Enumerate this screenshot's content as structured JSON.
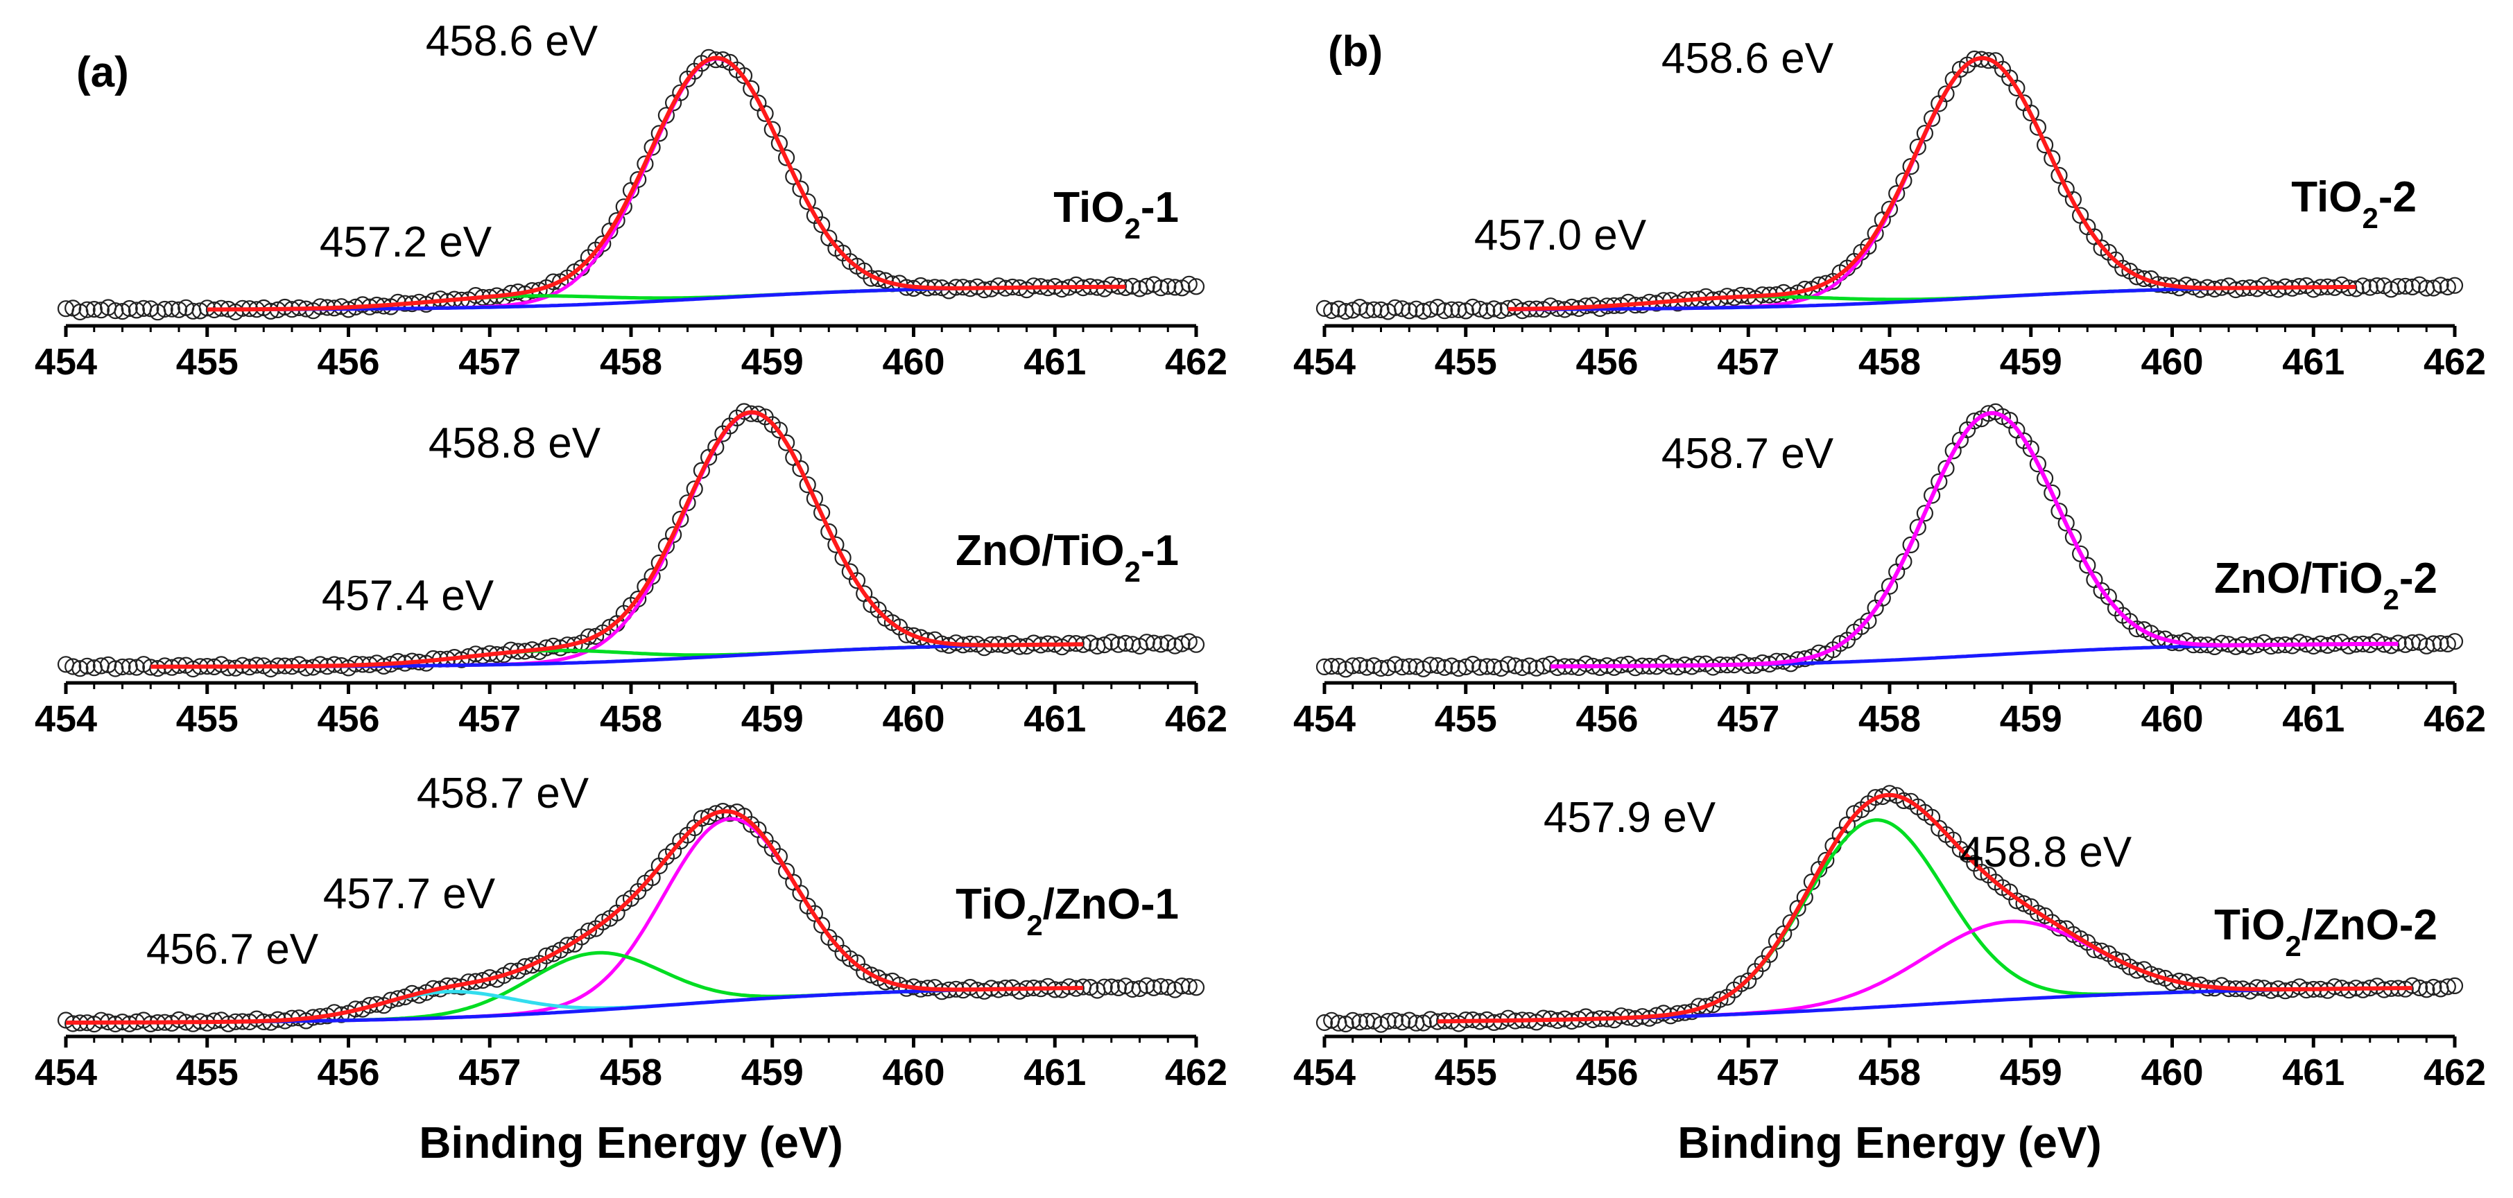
{
  "panels": [
    {
      "id": "a",
      "label": "(a)"
    },
    {
      "id": "b",
      "label": "(b)"
    }
  ],
  "chart_data": [
    {
      "type": "line",
      "panel": "a",
      "row": 0,
      "sample_label": {
        "text": "TiO2-1",
        "parts": [
          [
            "TiO",
            "base"
          ],
          [
            "2",
            "sub"
          ],
          [
            "-1",
            "base"
          ]
        ]
      },
      "xlim": [
        454,
        462
      ],
      "xticks": [
        454,
        455,
        456,
        457,
        458,
        459,
        460,
        461,
        462
      ],
      "xlabel": "",
      "peak_labels": [
        {
          "text": "458.6 eV",
          "energy": 458.6
        },
        {
          "text": "457.2 eV",
          "energy": 457.2
        }
      ],
      "data_range": [
        454,
        462
      ],
      "fit_range": [
        455.0,
        461.5
      ],
      "baseline": {
        "low": 0.03,
        "high": 0.12,
        "center": 458.6,
        "width": 0.75
      },
      "peaks": [
        {
          "center": 458.6,
          "amp": 0.92,
          "fwhm": 1.1,
          "color": "#ff00ff"
        },
        {
          "center": 457.2,
          "amp": 0.04,
          "fwhm": 1.5,
          "color": "#00dd22"
        }
      ],
      "total_color": "#ff1a1a",
      "baseline_color": "#1a1aff",
      "component_peaks_drawn": [
        0,
        1
      ]
    },
    {
      "type": "line",
      "panel": "a",
      "row": 1,
      "sample_label": {
        "text": "ZnO/TiO2-1",
        "parts": [
          [
            "ZnO/TiO",
            "base"
          ],
          [
            "2",
            "sub"
          ],
          [
            "-1",
            "base"
          ]
        ]
      },
      "xlim": [
        454,
        462
      ],
      "xticks": [
        454,
        455,
        456,
        457,
        458,
        459,
        460,
        461,
        462
      ],
      "xlabel": "",
      "peak_labels": [
        {
          "text": "458.8 eV",
          "energy": 458.8
        },
        {
          "text": "457.4 eV",
          "energy": 457.4
        }
      ],
      "data_range": [
        454,
        462
      ],
      "fit_range": [
        454.6,
        461.2
      ],
      "baseline": {
        "low": 0.03,
        "high": 0.12,
        "center": 458.8,
        "width": 0.75
      },
      "peaks": [
        {
          "center": 458.85,
          "amp": 0.93,
          "fwhm": 1.1,
          "color": "#ff00ff"
        },
        {
          "center": 457.4,
          "amp": 0.05,
          "fwhm": 1.4,
          "color": "#00dd22"
        }
      ],
      "total_color": "#ff1a1a",
      "baseline_color": "#1a1aff",
      "component_peaks_drawn": [
        0,
        1
      ]
    },
    {
      "type": "line",
      "panel": "a",
      "row": 2,
      "sample_label": {
        "text": "TiO2/ZnO-1",
        "parts": [
          [
            "TiO",
            "base"
          ],
          [
            "2",
            "sub"
          ],
          [
            "/ZnO-1",
            "base"
          ]
        ]
      },
      "xlim": [
        454,
        462
      ],
      "xticks": [
        454,
        455,
        456,
        457,
        458,
        459,
        460,
        461,
        462
      ],
      "xlabel": "Binding Energy (eV)",
      "peak_labels": [
        {
          "text": "458.7 eV",
          "energy": 458.7
        },
        {
          "text": "457.7 eV",
          "energy": 457.7
        },
        {
          "text": "456.7 eV",
          "energy": 456.7
        }
      ],
      "data_range": [
        454,
        462
      ],
      "fit_range": [
        454.0,
        461.2
      ],
      "baseline": {
        "low": 0.02,
        "high": 0.16,
        "center": 458.3,
        "width": 0.9
      },
      "peaks": [
        {
          "center": 458.7,
          "amp": 0.7,
          "fwhm": 1.1,
          "color": "#ff00ff"
        },
        {
          "center": 457.75,
          "amp": 0.22,
          "fwhm": 1.1,
          "color": "#00dd22"
        },
        {
          "center": 456.7,
          "amp": 0.1,
          "fwhm": 1.1,
          "color": "#33ddee"
        }
      ],
      "total_color": "#ff1a1a",
      "baseline_color": "#1a1aff",
      "component_peaks_drawn": [
        0,
        1,
        2
      ]
    },
    {
      "type": "line",
      "panel": "b",
      "row": 0,
      "sample_label": {
        "text": "TiO2-2",
        "parts": [
          [
            "TiO",
            "base"
          ],
          [
            "2",
            "sub"
          ],
          [
            "-2",
            "base"
          ]
        ]
      },
      "xlim": [
        454,
        462
      ],
      "xticks": [
        454,
        455,
        456,
        457,
        458,
        459,
        460,
        461,
        462
      ],
      "xlabel": "",
      "peak_labels": [
        {
          "text": "458.6 eV",
          "energy": 458.6
        },
        {
          "text": "457.0 eV",
          "energy": 457.0
        }
      ],
      "data_range": [
        454,
        462
      ],
      "fit_range": [
        455.3,
        461.3
      ],
      "baseline": {
        "low": 0.03,
        "high": 0.12,
        "center": 458.6,
        "width": 0.75
      },
      "peaks": [
        {
          "center": 458.65,
          "amp": 0.92,
          "fwhm": 1.1,
          "color": "#ff00ff"
        },
        {
          "center": 457.0,
          "amp": 0.04,
          "fwhm": 1.5,
          "color": "#00dd22"
        }
      ],
      "total_color": "#ff1a1a",
      "baseline_color": "#1a1aff",
      "component_peaks_drawn": [
        0,
        1
      ]
    },
    {
      "type": "line",
      "panel": "b",
      "row": 1,
      "sample_label": {
        "text": "ZnO/TiO2-2",
        "parts": [
          [
            "ZnO/TiO",
            "base"
          ],
          [
            "2",
            "sub"
          ],
          [
            "-2",
            "base"
          ]
        ]
      },
      "xlim": [
        454,
        462
      ],
      "xticks": [
        454,
        455,
        456,
        457,
        458,
        459,
        460,
        461,
        462
      ],
      "xlabel": "",
      "peak_labels": [
        {
          "text": "458.7 eV",
          "energy": 458.7
        }
      ],
      "data_range": [
        454,
        462
      ],
      "fit_range": [
        455.6,
        461.6
      ],
      "baseline": {
        "low": 0.03,
        "high": 0.12,
        "center": 458.7,
        "width": 0.75
      },
      "peaks": [
        {
          "center": 458.72,
          "amp": 0.93,
          "fwhm": 1.1,
          "color": "#ff00ff"
        }
      ],
      "total_color": "#ff00ff",
      "baseline_color": "#1a1aff",
      "component_peaks_drawn": []
    },
    {
      "type": "line",
      "panel": "b",
      "row": 2,
      "sample_label": {
        "text": "TiO2/ZnO-2",
        "parts": [
          [
            "TiO",
            "base"
          ],
          [
            "2",
            "sub"
          ],
          [
            "/ZnO-2",
            "base"
          ]
        ]
      },
      "xlim": [
        454,
        462
      ],
      "xticks": [
        454,
        455,
        456,
        457,
        458,
        459,
        460,
        461,
        462
      ],
      "xlabel": "Binding Energy (eV)",
      "peak_labels": [
        {
          "text": "457.9 eV",
          "energy": 457.9
        },
        {
          "text": "458.8 eV",
          "energy": 458.8
        }
      ],
      "data_range": [
        454,
        462
      ],
      "fit_range": [
        454.8,
        461.7
      ],
      "baseline": {
        "low": 0.02,
        "high": 0.16,
        "center": 458.2,
        "width": 1.1
      },
      "peaks": [
        {
          "center": 457.9,
          "amp": 0.72,
          "fwhm": 1.15,
          "color": "#00dd22"
        },
        {
          "center": 458.85,
          "amp": 0.3,
          "fwhm": 1.4,
          "color": "#ff00ff"
        }
      ],
      "total_color": "#ff1a1a",
      "baseline_color": "#1a1aff",
      "component_peaks_drawn": [
        0,
        1
      ]
    }
  ]
}
